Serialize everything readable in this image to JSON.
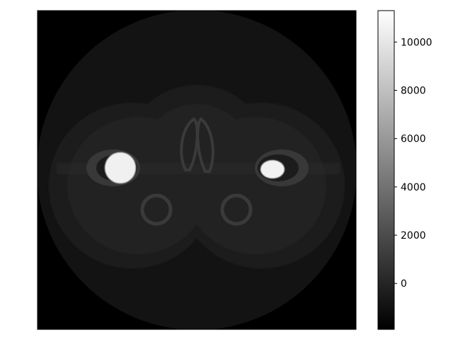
{
  "image": {
    "kind": "grayscale CT slice reconstruction (phantom, axial view)",
    "colormap": "gray"
  },
  "colorbar": {
    "colormap": "gray",
    "range": [
      -1900,
      11300
    ],
    "ticks": [
      {
        "value": 0,
        "label": "0"
      },
      {
        "value": 2000,
        "label": "2000"
      },
      {
        "value": 4000,
        "label": "4000"
      },
      {
        "value": 6000,
        "label": "6000"
      },
      {
        "value": 8000,
        "label": "8000"
      },
      {
        "value": 10000,
        "label": "10000"
      }
    ]
  },
  "colors": {
    "background": "#ffffff",
    "axes_background": "#000000",
    "field_of_view": "#131313",
    "body_soft_tissue": "#262626",
    "bone": "#3b3b3b",
    "bright_insert": "#f2f2f2"
  }
}
